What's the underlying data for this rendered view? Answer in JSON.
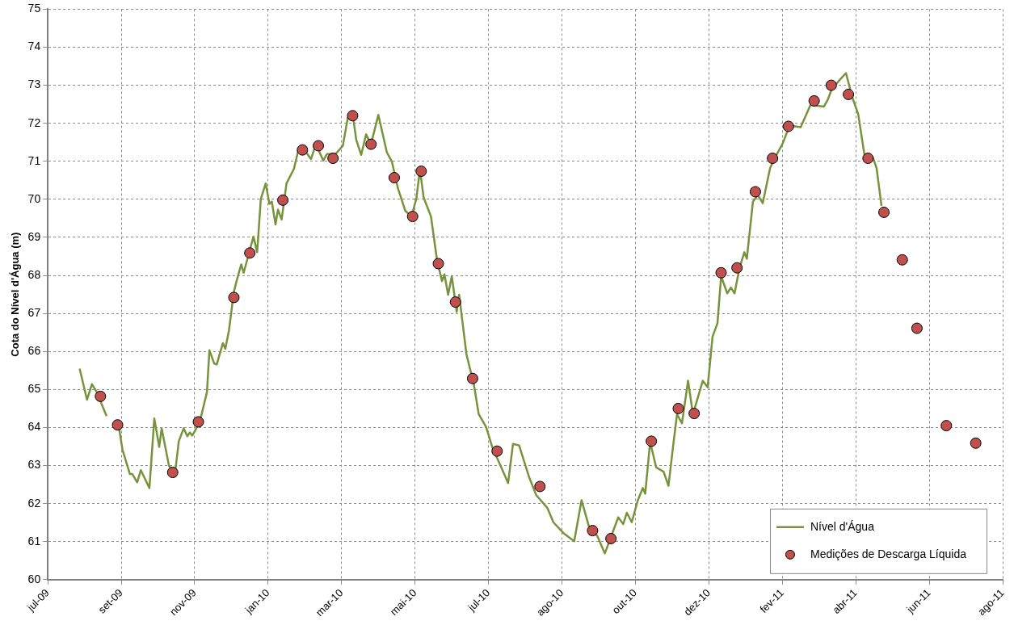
{
  "chart_data": {
    "type": "line",
    "ylabel": "Cota do Nível d'Água (m)",
    "xlim": [
      "2009-07-06",
      "2011-08-25"
    ],
    "xticks": [
      {
        "value": "2009-07-06",
        "label": "jul-09"
      },
      {
        "value": "2009-09-04",
        "label": "set-09"
      },
      {
        "value": "2009-11-03",
        "label": "nov-09"
      },
      {
        "value": "2010-01-02",
        "label": "jan-10"
      },
      {
        "value": "2010-03-03",
        "label": "mar-10"
      },
      {
        "value": "2010-05-02",
        "label": "mai-10"
      },
      {
        "value": "2010-07-01",
        "label": "jul-10"
      },
      {
        "value": "2010-08-30",
        "label": "ago-10"
      },
      {
        "value": "2010-10-29",
        "label": "out-10"
      },
      {
        "value": "2010-12-28",
        "label": "dez-10"
      },
      {
        "value": "2011-02-26",
        "label": "fev-11"
      },
      {
        "value": "2011-04-27",
        "label": "abr-11"
      },
      {
        "value": "2011-06-26",
        "label": "jun-11"
      },
      {
        "value": "2011-08-25",
        "label": "ago-11"
      }
    ],
    "ylim": [
      60,
      75
    ],
    "yticks": [
      60,
      61,
      62,
      63,
      64,
      65,
      66,
      67,
      68,
      69,
      70,
      71,
      72,
      73,
      74,
      75
    ],
    "grid": true,
    "legend": "bottom right",
    "series": [
      {
        "name": "Nível d'Água",
        "type": "line",
        "color": "#77933c",
        "marker": "none",
        "line_style": "solid",
        "x": [
          "2009-08-01",
          "2009-08-07",
          "2009-08-11",
          "2009-08-15",
          "2009-08-23",
          "2009-08-28",
          "2009-09-02",
          "2009-09-05",
          "2009-09-11",
          "2009-09-13",
          "2009-09-17",
          "2009-09-20",
          "2009-09-27",
          "2009-10-01",
          "2009-10-05",
          "2009-10-07",
          "2009-10-13",
          "2009-10-18",
          "2009-10-21",
          "2009-10-25",
          "2009-10-28",
          "2009-10-30",
          "2009-11-01",
          "2009-11-07",
          "2009-11-13",
          "2009-11-15",
          "2009-11-19",
          "2009-11-21",
          "2009-11-26",
          "2009-11-28",
          "2009-12-01",
          "2009-12-05",
          "2009-12-07",
          "2009-12-11",
          "2009-12-13",
          "2009-12-21",
          "2009-12-24",
          "2009-12-27",
          "2009-12-31",
          "2010-01-03",
          "2010-01-05",
          "2010-01-08",
          "2010-01-10",
          "2010-01-13",
          "2010-01-17",
          "2010-01-23",
          "2010-01-27",
          "2010-02-01",
          "2010-02-06",
          "2010-02-10",
          "2010-02-16",
          "2010-02-19",
          "2010-02-26",
          "2010-03-04",
          "2010-03-08",
          "2010-03-12",
          "2010-03-15",
          "2010-03-19",
          "2010-03-23",
          "2010-03-27",
          "2010-04-02",
          "2010-04-09",
          "2010-04-13",
          "2010-04-18",
          "2010-04-24",
          "2010-04-29",
          "2010-05-03",
          "2010-05-06",
          "2010-05-09",
          "2010-05-15",
          "2010-05-20",
          "2010-05-24",
          "2010-05-26",
          "2010-05-29",
          "2010-06-01",
          "2010-06-05",
          "2010-06-07",
          "2010-06-13",
          "2010-06-19",
          "2010-06-23",
          "2010-06-29",
          "2010-07-04",
          "2010-07-12",
          "2010-07-17",
          "2010-07-21",
          "2010-07-26",
          "2010-08-03",
          "2010-08-09",
          "2010-08-18",
          "2010-08-23",
          "2010-08-31",
          "2010-09-09",
          "2010-09-15",
          "2010-09-21",
          "2010-09-28",
          "2010-10-04",
          "2010-10-15",
          "2010-10-19",
          "2010-10-22",
          "2010-10-26",
          "2010-10-31",
          "2010-11-04",
          "2010-11-06",
          "2010-11-10",
          "2010-11-15",
          "2010-11-21",
          "2010-11-25",
          "2010-11-29",
          "2010-12-02",
          "2010-12-06",
          "2010-12-11",
          "2010-12-15",
          "2010-12-23",
          "2010-12-27",
          "2010-12-31",
          "2011-01-04",
          "2011-01-07",
          "2011-01-12",
          "2011-01-15",
          "2011-01-18",
          "2011-01-22",
          "2011-01-26",
          "2011-01-28",
          "2011-02-02",
          "2011-02-06",
          "2011-02-10",
          "2011-02-16",
          "2011-02-20",
          "2011-02-26",
          "2011-03-04",
          "2011-03-13",
          "2011-03-21",
          "2011-04-01",
          "2011-04-04",
          "2011-04-07",
          "2011-04-13",
          "2011-04-19",
          "2011-04-24",
          "2011-04-29",
          "2011-05-04",
          "2011-05-11",
          "2011-05-14",
          "2011-05-18"
        ],
        "values": [
          65.55,
          64.73,
          65.14,
          64.93,
          64.3,
          null,
          64.02,
          63.42,
          62.78,
          62.78,
          62.56,
          62.88,
          62.41,
          64.24,
          63.49,
          63.98,
          62.99,
          62.82,
          63.64,
          63.98,
          63.77,
          63.87,
          63.79,
          64.13,
          64.93,
          66.03,
          65.68,
          65.66,
          66.22,
          66.07,
          66.56,
          67.57,
          67.83,
          68.29,
          68.07,
          69.02,
          68.61,
          70.01,
          70.42,
          69.88,
          69.94,
          69.34,
          69.73,
          69.47,
          70.42,
          70.8,
          71.34,
          71.28,
          71.06,
          71.45,
          71.02,
          71.19,
          71.19,
          71.41,
          72.14,
          72.24,
          71.56,
          71.17,
          71.71,
          71.45,
          72.22,
          71.23,
          71.0,
          70.29,
          69.7,
          69.55,
          70.01,
          70.78,
          70.05,
          69.55,
          68.39,
          67.85,
          68.03,
          67.49,
          67.98,
          67.04,
          67.49,
          65.92,
          65.14,
          64.35,
          64.02,
          63.49,
          62.91,
          62.54,
          63.57,
          63.53,
          62.71,
          62.22,
          61.89,
          61.51,
          61.23,
          61.01,
          62.09,
          61.4,
          61.14,
          60.69,
          61.64,
          61.46,
          61.76,
          61.51,
          62.09,
          62.41,
          62.26,
          63.62,
          62.95,
          62.84,
          62.47,
          63.57,
          64.35,
          64.11,
          65.23,
          64.35,
          65.23,
          65.06,
          66.39,
          66.74,
          67.98,
          67.53,
          67.68,
          67.53,
          68.2,
          68.61,
          68.44,
          69.94,
          70.11,
          69.9,
          70.82,
          71.1,
          71.45,
          71.94,
          71.9,
          72.48,
          72.44,
          72.61,
          72.87,
          73.11,
          73.32,
          72.7,
          72.24,
          71.19,
          71.1,
          70.82,
          69.83
        ]
      },
      {
        "name": "Medições de Descarga Líquida",
        "type": "scatter",
        "color": "#c0504d",
        "marker": "circle",
        "x": [
          "2009-08-18",
          "2009-09-01",
          "2009-10-16",
          "2009-11-06",
          "2009-12-05",
          "2009-12-18",
          "2010-01-14",
          "2010-01-30",
          "2010-02-12",
          "2010-02-24",
          "2010-03-12",
          "2010-03-27",
          "2010-04-15",
          "2010-04-30",
          "2010-05-07",
          "2010-05-21",
          "2010-06-04",
          "2010-06-18",
          "2010-07-08",
          "2010-08-12",
          "2010-09-24",
          "2010-10-09",
          "2010-11-11",
          "2010-12-03",
          "2010-12-16",
          "2011-01-07",
          "2011-01-20",
          "2011-02-04",
          "2011-02-18",
          "2011-03-03",
          "2011-03-24",
          "2011-04-07",
          "2011-04-21",
          "2011-05-07",
          "2011-05-20",
          "2011-06-04",
          "2011-06-16",
          "2011-07-10",
          "2011-08-03"
        ],
        "values": [
          64.82,
          64.07,
          62.82,
          64.15,
          67.42,
          68.59,
          69.98,
          71.3,
          71.41,
          71.08,
          72.2,
          71.45,
          70.57,
          69.55,
          70.74,
          68.31,
          67.3,
          65.29,
          63.38,
          62.45,
          61.29,
          61.08,
          63.64,
          64.5,
          64.37,
          68.07,
          68.2,
          70.2,
          71.08,
          71.92,
          72.59,
          73.0,
          72.76,
          71.08,
          69.66,
          68.41,
          66.61,
          64.05,
          63.59
        ]
      }
    ]
  }
}
